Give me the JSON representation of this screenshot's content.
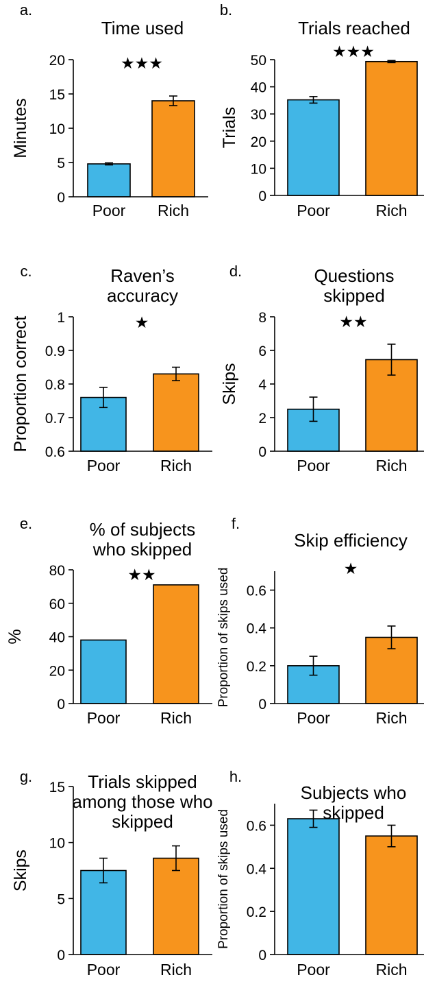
{
  "colors": {
    "poor": "#41b6e6",
    "rich": "#f7941d",
    "axis": "#000000"
  },
  "chart_data": [
    {
      "letter": "a.",
      "title": [
        "Time used"
      ],
      "type": "bar",
      "ylabel": "Minutes",
      "categories": [
        "Poor",
        "Rich"
      ],
      "values": [
        4.8,
        14.0
      ],
      "errors": [
        0.15,
        0.7
      ],
      "ylim": [
        0,
        20
      ],
      "yticks": [
        0,
        5,
        10,
        15,
        20
      ],
      "ytick_labels": [
        "0",
        "5",
        "10",
        "15",
        "20"
      ],
      "significance": "★★★"
    },
    {
      "letter": "b.",
      "title": [
        "Trials reached"
      ],
      "type": "bar",
      "ylabel": "Trials",
      "categories": [
        "Poor",
        "Rich"
      ],
      "values": [
        35.2,
        49.3
      ],
      "errors": [
        1.2,
        0.4
      ],
      "ylim": [
        0,
        50
      ],
      "yticks": [
        0,
        10,
        20,
        30,
        40,
        50
      ],
      "ytick_labels": [
        "0",
        "10",
        "20",
        "30",
        "40",
        "50"
      ],
      "significance": "★★★"
    },
    {
      "letter": "c.",
      "title": [
        "Raven’s",
        "accuracy"
      ],
      "type": "bar",
      "ylabel": "Proportion correct",
      "categories": [
        "Poor",
        "Rich"
      ],
      "values": [
        0.76,
        0.83
      ],
      "errors": [
        0.03,
        0.02
      ],
      "ylim": [
        0.6,
        1.0
      ],
      "yticks": [
        0.6,
        0.7,
        0.8,
        0.9,
        1.0
      ],
      "ytick_labels": [
        "0.6",
        "0.7",
        "0.8",
        "0.9",
        "1"
      ],
      "significance": "★"
    },
    {
      "letter": "d.",
      "title": [
        "Questions",
        "skipped"
      ],
      "type": "bar",
      "ylabel": "Skips",
      "categories": [
        "Poor",
        "Rich"
      ],
      "values": [
        2.5,
        5.45
      ],
      "errors": [
        0.72,
        0.92
      ],
      "ylim": [
        0,
        8
      ],
      "yticks": [
        0,
        2,
        4,
        6,
        8
      ],
      "ytick_labels": [
        "0",
        "2",
        "4",
        "6",
        "8"
      ],
      "significance": "★★"
    },
    {
      "letter": "e.",
      "title": [
        "% of subjects",
        "who skipped"
      ],
      "type": "bar",
      "ylabel": "%",
      "categories": [
        "Poor",
        "Rich"
      ],
      "values": [
        38,
        71
      ],
      "errors": [
        0,
        0
      ],
      "ylim": [
        0,
        80
      ],
      "yticks": [
        0,
        20,
        40,
        60,
        80
      ],
      "ytick_labels": [
        "0",
        "20",
        "40",
        "60",
        "80"
      ],
      "significance": "★★"
    },
    {
      "letter": "f.",
      "title": [
        "Skip efficiency"
      ],
      "type": "bar",
      "ylabel": "Proportion of skips used",
      "categories": [
        "Poor",
        "Rich"
      ],
      "values": [
        0.2,
        0.35
      ],
      "errors": [
        0.05,
        0.06
      ],
      "ylim": [
        0,
        0.7
      ],
      "yticks": [
        0,
        0.2,
        0.4,
        0.6
      ],
      "ytick_labels": [
        "0",
        "0.2",
        "0.4",
        "0.6"
      ],
      "significance": "★"
    },
    {
      "letter": "g.",
      "title": [
        "Trials skipped",
        "among those who",
        "skipped"
      ],
      "type": "bar",
      "ylabel": "Skips",
      "categories": [
        "Poor",
        "Rich"
      ],
      "values": [
        7.5,
        8.6
      ],
      "errors": [
        1.1,
        1.1
      ],
      "ylim": [
        0,
        15
      ],
      "yticks": [
        0,
        5,
        10,
        15
      ],
      "ytick_labels": [
        "0",
        "5",
        "10",
        "15"
      ],
      "significance": ""
    },
    {
      "letter": "h.",
      "title": [
        "Subjects who",
        "skipped"
      ],
      "type": "bar",
      "ylabel": "Proportion of skips used",
      "categories": [
        "Poor",
        "Rich"
      ],
      "values": [
        0.63,
        0.55
      ],
      "errors": [
        0.04,
        0.05
      ],
      "ylim": [
        0,
        0.7
      ],
      "yticks": [
        0,
        0.2,
        0.4,
        0.6
      ],
      "ytick_labels": [
        "0",
        "0.2",
        "0.4",
        "0.6"
      ],
      "significance": ""
    }
  ]
}
